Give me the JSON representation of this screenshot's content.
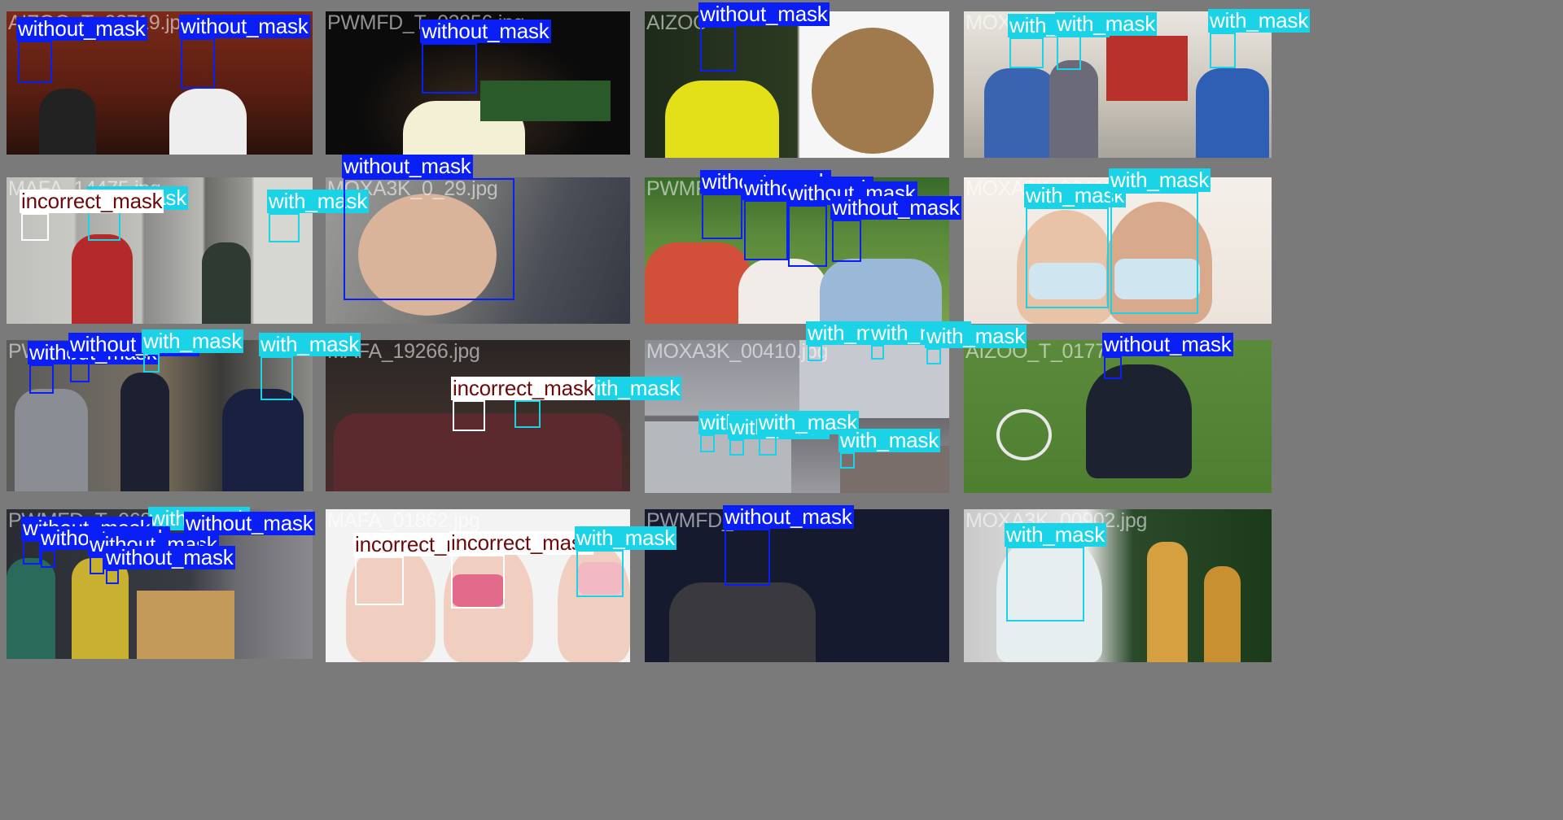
{
  "colors": {
    "with_mask": "#1ad3e6",
    "without_mask": "#0a1ff5",
    "incorrect_mask": "#ffffff",
    "label_text_light": "#ffffff",
    "label_text_incorrect": "#6a0a0a",
    "mosaic_border": "#7a7a7a"
  },
  "classes": [
    "with_mask",
    "without_mask",
    "incorrect_mask"
  ],
  "tiles": [
    {
      "file": "AIZOO_T_03719.jpg",
      "dets": [
        "without_mask",
        "without_mask"
      ]
    },
    {
      "file": "PWMFD_T_03856.jpg",
      "dets": [
        "without_mask"
      ]
    },
    {
      "file": "AIZOO",
      "dets": [
        "without_mask"
      ]
    },
    {
      "file": "MOXA",
      "dets": [
        "with_mask",
        "with_mask",
        "with_mask"
      ]
    },
    {
      "file": "MAFA_14475.jpg",
      "dets": [
        "incorrect_mask",
        "with_mask",
        "with_mask"
      ]
    },
    {
      "file": "MOXA3K_0_29.jpg",
      "dets": [
        "without_mask"
      ]
    },
    {
      "file": "PWMF",
      "dets": [
        "without_mask",
        "without_mask",
        "without_mask",
        "without_mask"
      ]
    },
    {
      "file": "MOXA3K_02412",
      "dets": [
        "with_mask",
        "with_mask"
      ]
    },
    {
      "file": "PW",
      "dets": [
        "without_mask",
        "without_mask",
        "with_mask",
        "with_mask"
      ]
    },
    {
      "file": "MAFA_19266.jpg",
      "dets": [
        "incorrect_mask",
        "with_mask"
      ]
    },
    {
      "file": "MOXA3K_00410.jpg",
      "dets": [
        "with_mask",
        "with_mask",
        "with_mask",
        "with_mask",
        "with_mask",
        "with_mask",
        "with_mask"
      ]
    },
    {
      "file": "AIZOO_T_0177",
      "dets": [
        "without_mask"
      ]
    },
    {
      "file": "PWMFD_T_0680",
      "dets": [
        "without_mask",
        "without_mask",
        "without_mask",
        "without_mask",
        "with_mask",
        "without_mask"
      ]
    },
    {
      "file": "MAFA_01862.jpg",
      "dets": [
        "incorrect_mask",
        "incorrect_mask",
        "with_mask"
      ]
    },
    {
      "file": "PWMFD_",
      "dets": [
        "without_mask"
      ]
    },
    {
      "file": "MOXA3K_00902.jpg",
      "dets": [
        "with_mask"
      ]
    }
  ]
}
